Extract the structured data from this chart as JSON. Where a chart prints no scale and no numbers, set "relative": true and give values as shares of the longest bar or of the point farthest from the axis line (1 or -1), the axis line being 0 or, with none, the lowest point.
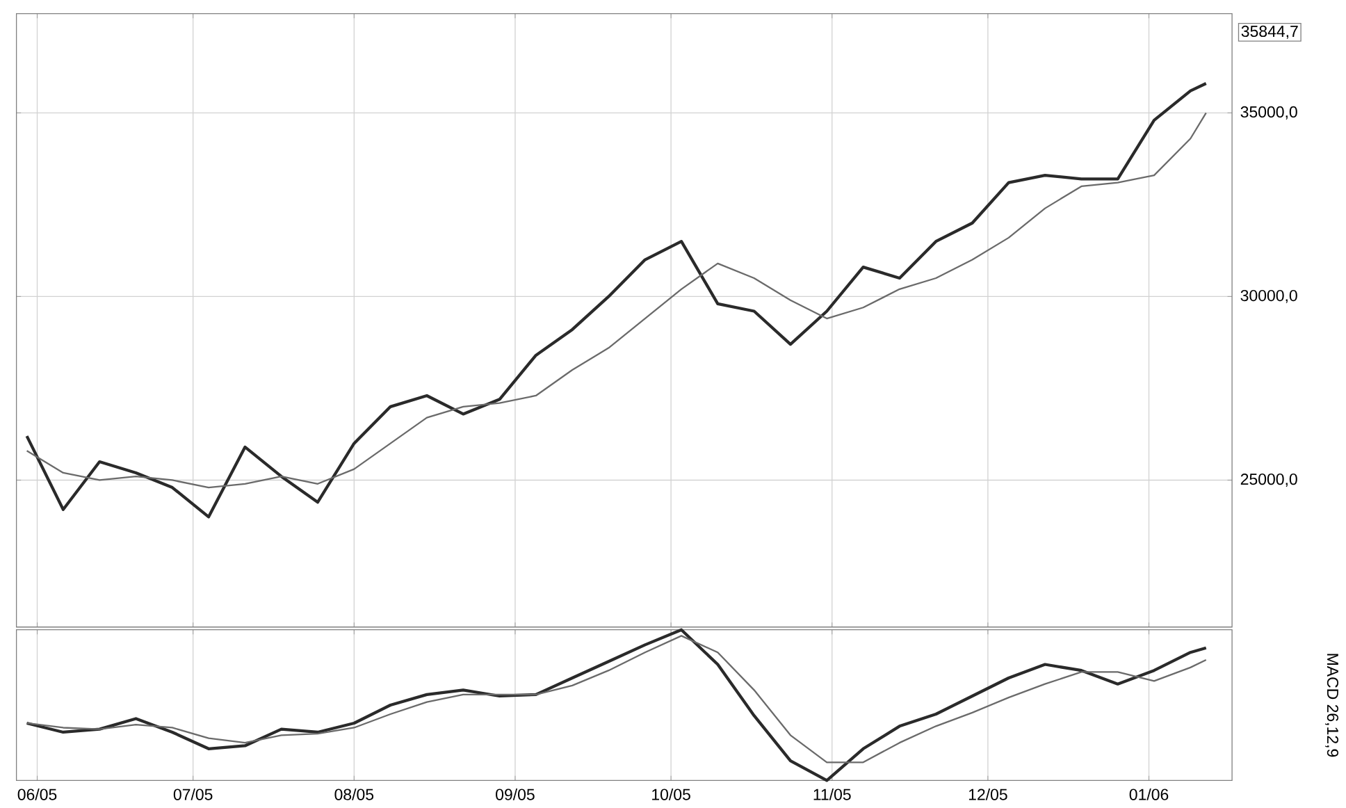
{
  "chart_data": [
    {
      "type": "line",
      "x": [
        "2005-05-30",
        "2005-06-06",
        "2005-06-13",
        "2005-06-20",
        "2005-06-27",
        "2005-07-04",
        "2005-07-11",
        "2005-07-18",
        "2005-07-25",
        "2005-08-01",
        "2005-08-08",
        "2005-08-15",
        "2005-08-22",
        "2005-08-29",
        "2005-09-05",
        "2005-09-12",
        "2005-09-19",
        "2005-09-26",
        "2005-10-03",
        "2005-10-10",
        "2005-10-17",
        "2005-10-24",
        "2005-10-31",
        "2005-11-07",
        "2005-11-14",
        "2005-11-21",
        "2005-11-28",
        "2005-12-05",
        "2005-12-12",
        "2005-12-19",
        "2005-12-26",
        "2006-01-02",
        "2006-01-09",
        "2006-01-12"
      ],
      "series": [
        {
          "color": "#2a2a2a",
          "values": [
            26200,
            24200,
            25500,
            25200,
            24800,
            24000,
            25900,
            25100,
            24400,
            26000,
            27000,
            27300,
            26800,
            27200,
            28400,
            29100,
            30000,
            31000,
            31500,
            29800,
            29600,
            28700,
            29600,
            30800,
            30500,
            31500,
            32000,
            33100,
            33300,
            33200,
            33200,
            34800,
            35600,
            35800
          ]
        },
        {
          "color": "#6a6a6a",
          "values": [
            25800,
            25200,
            25000,
            25100,
            25000,
            24800,
            24900,
            25100,
            24900,
            25300,
            26000,
            26700,
            27000,
            27100,
            27300,
            28000,
            28600,
            29400,
            30200,
            30900,
            30500,
            29900,
            29400,
            29700,
            30200,
            30500,
            31000,
            31600,
            32400,
            33000,
            33100,
            33300,
            34300,
            35000
          ]
        }
      ],
      "xlim": [
        "2005-05-28",
        "2006-01-17"
      ],
      "ylim": [
        21000,
        37700
      ],
      "yticks": [
        {
          "value": 25000,
          "label": "25000,0"
        },
        {
          "value": 30000,
          "label": "30000,0"
        },
        {
          "value": 35000,
          "label": "35000,0"
        }
      ],
      "xticks": [
        {
          "value": "2005-06-01",
          "label": null
        },
        {
          "value": "2005-07-01",
          "label": null
        },
        {
          "value": "2005-08-01",
          "label": null
        },
        {
          "value": "2005-09-01",
          "label": null
        },
        {
          "value": "2005-10-01",
          "label": null
        },
        {
          "value": "2005-11-01",
          "label": null
        },
        {
          "value": "2005-12-01",
          "label": null
        },
        {
          "value": "2006-01-01",
          "label": null
        }
      ],
      "tick_labels": "y",
      "grid": true,
      "annotations": [
        "35844,7"
      ]
    },
    {
      "type": "line",
      "x": [
        "2005-05-30",
        "2005-06-06",
        "2005-06-13",
        "2005-06-20",
        "2005-06-27",
        "2005-07-04",
        "2005-07-11",
        "2005-07-18",
        "2005-07-25",
        "2005-08-01",
        "2005-08-08",
        "2005-08-15",
        "2005-08-22",
        "2005-08-29",
        "2005-09-05",
        "2005-09-12",
        "2005-09-19",
        "2005-09-26",
        "2005-10-03",
        "2005-10-10",
        "2005-10-17",
        "2005-10-24",
        "2005-10-31",
        "2005-11-07",
        "2005-11-14",
        "2005-11-21",
        "2005-11-28",
        "2005-12-05",
        "2005-12-12",
        "2005-12-19",
        "2005-12-26",
        "2006-01-02",
        "2006-01-09",
        "2006-01-12"
      ],
      "relative": true,
      "ylabel": "MACD 26,12,9",
      "series": [
        {
          "color": "#2a2a2a",
          "values": [
            0.38,
            0.32,
            0.34,
            0.41,
            0.32,
            0.21,
            0.23,
            0.34,
            0.32,
            0.38,
            0.5,
            0.57,
            0.6,
            0.56,
            0.57,
            0.68,
            0.79,
            0.9,
            1.0,
            0.77,
            0.43,
            0.13,
            0.0,
            0.21,
            0.36,
            0.44,
            0.56,
            0.68,
            0.77,
            0.73,
            0.64,
            0.73,
            0.85,
            0.88
          ]
        },
        {
          "color": "#6a6a6a",
          "values": [
            0.38,
            0.35,
            0.34,
            0.37,
            0.35,
            0.28,
            0.25,
            0.3,
            0.31,
            0.35,
            0.44,
            0.52,
            0.57,
            0.57,
            0.57,
            0.63,
            0.73,
            0.85,
            0.96,
            0.85,
            0.6,
            0.3,
            0.12,
            0.12,
            0.25,
            0.36,
            0.45,
            0.55,
            0.64,
            0.72,
            0.72,
            0.66,
            0.75,
            0.8
          ]
        }
      ],
      "xlim": [
        "2005-05-28",
        "2006-01-17"
      ],
      "xticks": [
        {
          "value": "2005-06-01",
          "label": "06/05"
        },
        {
          "value": "2005-07-01",
          "label": "07/05"
        },
        {
          "value": "2005-08-01",
          "label": "08/05"
        },
        {
          "value": "2005-09-01",
          "label": "09/05"
        },
        {
          "value": "2005-10-01",
          "label": "10/05"
        },
        {
          "value": "2005-11-01",
          "label": "11/05"
        },
        {
          "value": "2005-12-01",
          "label": "12/05"
        },
        {
          "value": "2006-01-01",
          "label": "01/06"
        }
      ],
      "tick_labels": "x",
      "grid": "x"
    }
  ]
}
